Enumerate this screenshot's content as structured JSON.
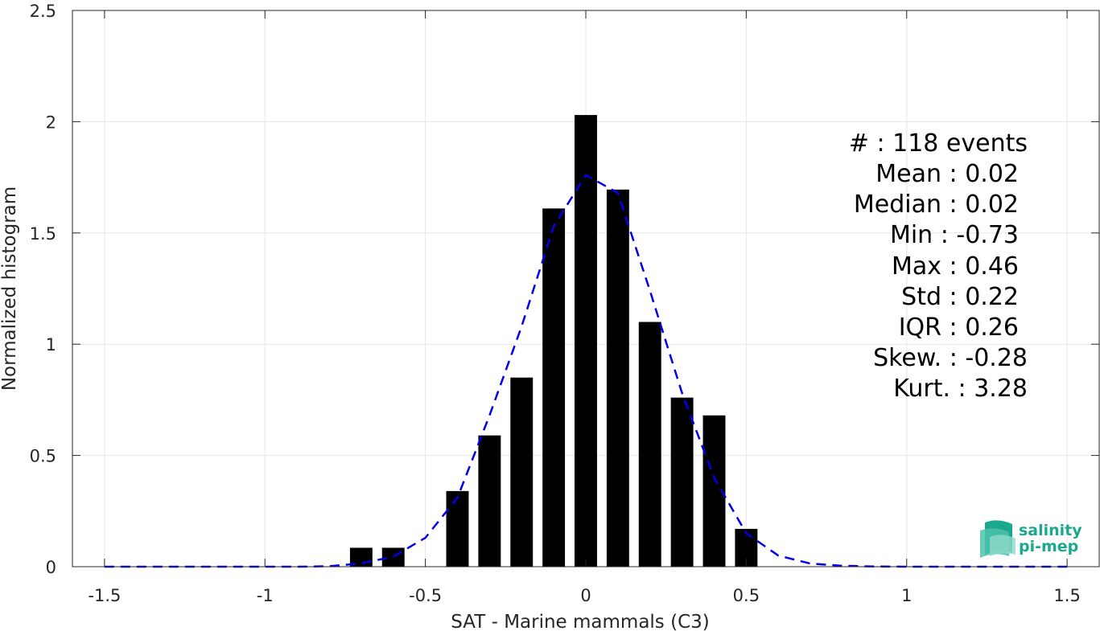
{
  "chart_data": {
    "type": "bar",
    "xlabel": "SAT - Marine mammals (C3)",
    "ylabel": "Normalized histogram",
    "xlim": [
      -1.6,
      1.6
    ],
    "ylim": [
      0,
      2.5
    ],
    "xticks": [
      -1.5,
      -1,
      -0.5,
      0,
      0.5,
      1,
      1.5
    ],
    "xtick_labels": [
      "-1.5",
      "-1",
      "-0.5",
      "0",
      "0.5",
      "1",
      "1.5"
    ],
    "yticks": [
      0,
      0.5,
      1,
      1.5,
      2,
      2.5
    ],
    "ytick_labels": [
      "0",
      "0.5",
      "1",
      "1.5",
      "2",
      "2.5"
    ],
    "grid": true,
    "bar_color": "#000000",
    "bar_width": 0.07,
    "bars": {
      "x": [
        -0.7,
        -0.6,
        -0.4,
        -0.3,
        -0.2,
        -0.1,
        0.0,
        0.1,
        0.2,
        0.3,
        0.4,
        0.5
      ],
      "values": [
        0.085,
        0.085,
        0.34,
        0.59,
        0.85,
        1.61,
        2.03,
        1.695,
        1.1,
        0.76,
        0.68,
        0.17
      ]
    },
    "fit_curve": {
      "style": "dashed",
      "color": "#0000ee",
      "x": [
        -1.5,
        -1.4,
        -1.3,
        -1.2,
        -1.1,
        -1.0,
        -0.9,
        -0.8,
        -0.7,
        -0.6,
        -0.5,
        -0.4,
        -0.3,
        -0.2,
        -0.1,
        0.0,
        0.1,
        0.2,
        0.3,
        0.4,
        0.5,
        0.6,
        0.7,
        0.8,
        0.9,
        1.0,
        1.1,
        1.2,
        1.3,
        1.4,
        1.5
      ],
      "y": [
        0.0,
        0.0,
        0.0,
        0.0,
        0.0,
        0.0,
        0.0,
        0.002,
        0.015,
        0.045,
        0.13,
        0.31,
        0.68,
        1.08,
        1.53,
        1.76,
        1.68,
        1.24,
        0.78,
        0.4,
        0.15,
        0.05,
        0.014,
        0.004,
        0.001,
        0.0,
        0.0,
        0.0,
        0.0,
        0.0,
        0.0
      ]
    }
  },
  "stats": [
    "#  : 118 events",
    "Mean : 0.02",
    "Median : 0.02",
    "Min : -0.73",
    "Max : 0.46",
    "Std : 0.22",
    "IQR : 0.26",
    "Skew. : -0.28",
    "Kurt. : 3.28"
  ],
  "logo": {
    "line1": "salinity",
    "line2": "pi-mep",
    "color": "#1aa88f"
  }
}
